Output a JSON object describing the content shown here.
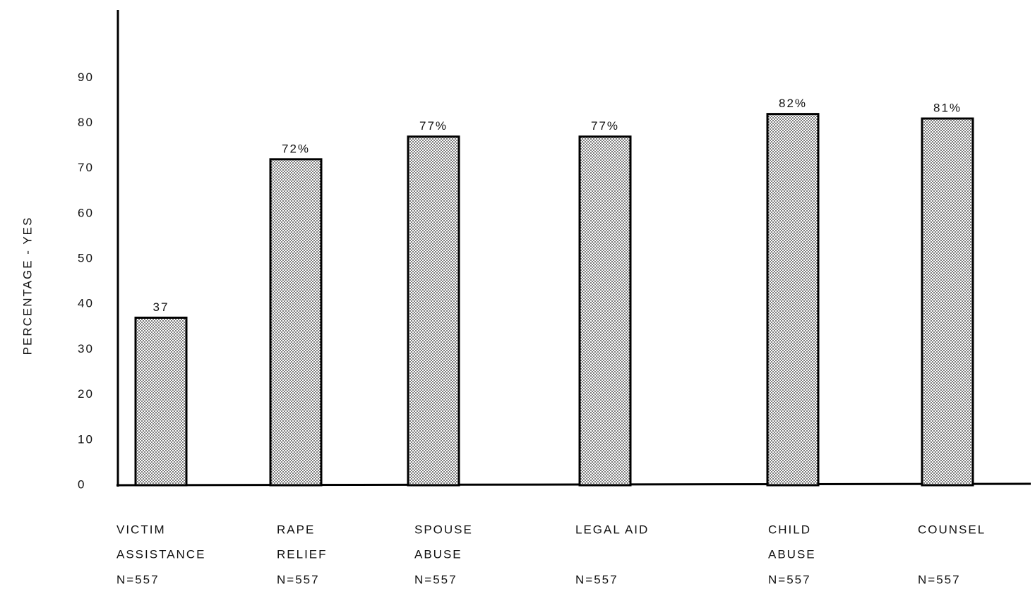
{
  "chart_data": {
    "type": "bar",
    "y_label": "PERCENTAGE - YES",
    "categories": [
      [
        "VICTIM",
        "ASSISTANCE",
        "N=557"
      ],
      [
        "RAPE",
        "RELIEF",
        "N=557"
      ],
      [
        "SPOUSE",
        "ABUSE",
        "N=557"
      ],
      [
        "LEGAL AID",
        "N=557"
      ],
      [
        "CHILD",
        "ABUSE",
        "N=557"
      ],
      [
        "COUNSEL",
        "N=557"
      ]
    ],
    "values": [
      37,
      72,
      77,
      77,
      82,
      81
    ],
    "value_labels": [
      "37",
      "72%",
      "77%",
      "77%",
      "82%",
      "81%"
    ],
    "color": "#000000",
    "ylim": [
      0,
      105
    ],
    "yticks": [
      0,
      10,
      20,
      30,
      40,
      50,
      60,
      70,
      80,
      90
    ],
    "grid": false
  }
}
